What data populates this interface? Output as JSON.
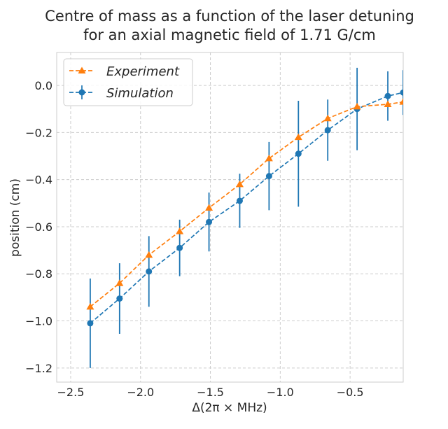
{
  "chart_data": {
    "type": "line",
    "title_lines": [
      "Centre of mass as a function of the laser detuning",
      "for an axial magnetic field of 1.71 G/cm"
    ],
    "xlabel": "Δ(2π × MHz)",
    "ylabel": "position (cm)",
    "xlim": [
      -2.6,
      -0.12
    ],
    "ylim": [
      -1.26,
      0.14
    ],
    "xticks": [
      -2.5,
      -2.0,
      -1.5,
      -1.0,
      -0.5
    ],
    "xtick_labels": [
      "−2.5",
      "−2.0",
      "−1.5",
      "−1.0",
      "−0.5"
    ],
    "yticks": [
      0.0,
      -0.2,
      -0.4,
      -0.6,
      -0.8,
      -1.0,
      -1.2
    ],
    "ytick_labels": [
      "0.0",
      "−0.2",
      "−0.4",
      "−0.6",
      "−0.8",
      "−1.0",
      "−1.2"
    ],
    "grid": true,
    "legend_position": "top-left",
    "series": [
      {
        "name": "Experiment",
        "color": "#ff7f0e",
        "marker": "triangle",
        "linestyle": "dashed",
        "x": [
          -2.36,
          -2.15,
          -1.94,
          -1.72,
          -1.51,
          -1.29,
          -1.08,
          -0.87,
          -0.66,
          -0.45,
          -0.23,
          -0.12
        ],
        "y": [
          -0.94,
          -0.84,
          -0.72,
          -0.62,
          -0.52,
          -0.42,
          -0.31,
          -0.22,
          -0.14,
          -0.09,
          -0.08,
          -0.07
        ]
      },
      {
        "name": "Simulation",
        "color": "#1f77b4",
        "marker": "circle",
        "linestyle": "dashed",
        "x": [
          -2.36,
          -2.15,
          -1.94,
          -1.72,
          -1.51,
          -1.29,
          -1.08,
          -0.87,
          -0.66,
          -0.45,
          -0.23,
          -0.12
        ],
        "y": [
          -1.01,
          -0.905,
          -0.79,
          -0.69,
          -0.58,
          -0.49,
          -0.385,
          -0.29,
          -0.19,
          -0.1,
          -0.045,
          -0.03
        ],
        "yerr": [
          0.19,
          0.15,
          0.15,
          0.12,
          0.125,
          0.115,
          0.145,
          0.225,
          0.13,
          0.175,
          0.105,
          0.095
        ]
      }
    ]
  }
}
